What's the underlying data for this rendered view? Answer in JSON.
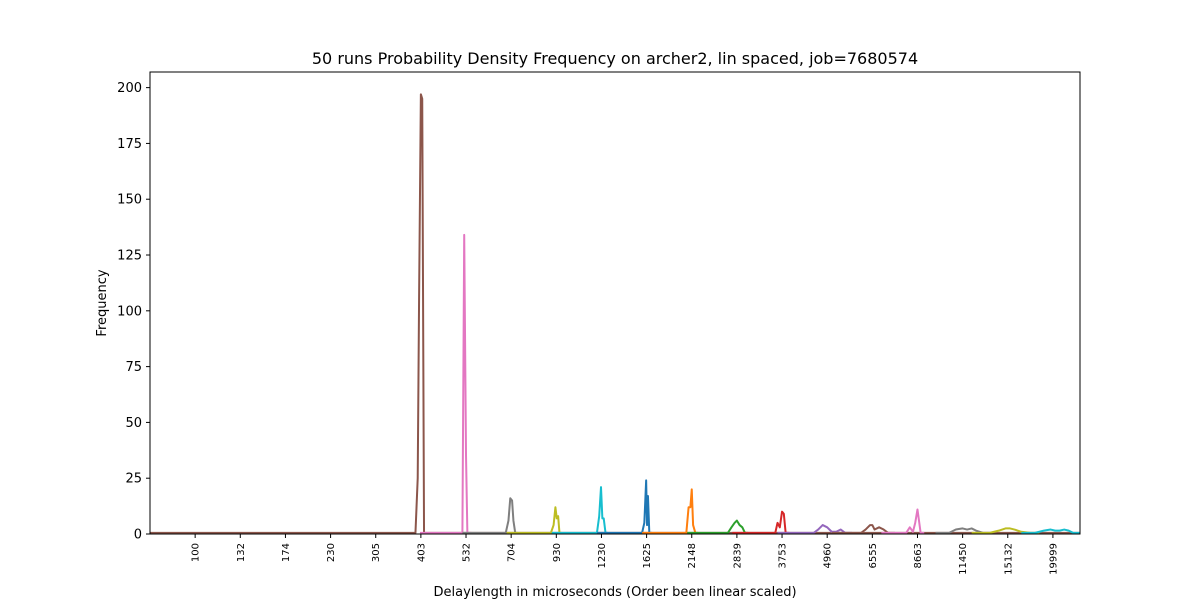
{
  "chart_data": {
    "type": "line",
    "title": "50 runs Probability Density Frequency on archer2, lin spaced, job=7680574",
    "xlabel": "Delaylength in microseconds (Order been linear scaled)",
    "ylabel": "Frequency",
    "ylim": [
      0,
      207
    ],
    "yticks": [
      0,
      25,
      50,
      75,
      100,
      125,
      150,
      175,
      200
    ],
    "xlim": [
      -1,
      19.6
    ],
    "x_tick_labels": [
      "100",
      "132",
      "174",
      "230",
      "305",
      "403",
      "532",
      "704",
      "930",
      "1230",
      "1625",
      "2148",
      "2839",
      "3753",
      "4960",
      "6555",
      "8663",
      "11450",
      "15132",
      "19999"
    ],
    "grid": false,
    "legend": "none",
    "series": [
      {
        "color": "#8c564b",
        "x": [
          -1.0,
          4.88,
          4.93,
          4.96,
          5.0,
          5.03,
          5.07,
          5.12,
          19.6
        ],
        "values": [
          0.5,
          0.5,
          25,
          105,
          197,
          195,
          0.5,
          0.5,
          0.5
        ]
      },
      {
        "color": "#e377c2",
        "x": [
          4.98,
          5.92,
          5.96,
          6.0,
          6.03,
          6.06,
          6.12
        ],
        "values": [
          0.5,
          0.5,
          134,
          35,
          0.5,
          0.5,
          0.5
        ]
      },
      {
        "color": "#7f7f7f",
        "x": [
          5.92,
          6.88,
          6.94,
          6.98,
          7.02,
          7.05,
          7.09,
          7.14
        ],
        "values": [
          0.5,
          0.5,
          6,
          16,
          15,
          6,
          0.5,
          0.5
        ]
      },
      {
        "color": "#bcbd22",
        "x": [
          6.9,
          7.88,
          7.94,
          7.98,
          8.01,
          8.04,
          8.07,
          8.12
        ],
        "values": [
          0.5,
          0.5,
          4,
          12,
          7,
          8,
          0.5,
          0.5
        ]
      },
      {
        "color": "#17becf",
        "x": [
          7.9,
          8.9,
          8.95,
          8.99,
          9.02,
          9.05,
          9.09,
          9.14
        ],
        "values": [
          0.5,
          0.5,
          8,
          21,
          7,
          7,
          0.5,
          0.5
        ]
      },
      {
        "color": "#1f77b4",
        "x": [
          8.9,
          9.9,
          9.95,
          9.99,
          10.01,
          10.03,
          10.06,
          10.12
        ],
        "values": [
          0.5,
          0.5,
          5,
          24,
          4,
          17,
          0.5,
          0.5
        ]
      },
      {
        "color": "#ff7f0e",
        "x": [
          9.9,
          10.88,
          10.93,
          10.97,
          11.0,
          11.03,
          11.08,
          11.14
        ],
        "values": [
          0.5,
          0.5,
          12,
          12,
          20,
          4,
          0.5,
          0.5
        ]
      },
      {
        "color": "#2ca02c",
        "x": [
          10.9,
          11.8,
          11.88,
          11.95,
          12.0,
          12.06,
          12.12,
          12.18,
          12.25
        ],
        "values": [
          0.5,
          0.5,
          3,
          5,
          6,
          4,
          3,
          0.5,
          0.5
        ]
      },
      {
        "color": "#d62728",
        "x": [
          11.9,
          12.85,
          12.9,
          12.95,
          13.0,
          13.04,
          13.08,
          13.15
        ],
        "values": [
          0.5,
          0.5,
          5,
          3,
          10,
          9,
          0.5,
          0.5
        ]
      },
      {
        "color": "#9467bd",
        "x": [
          12.9,
          13.7,
          13.8,
          13.9,
          14.0,
          14.1,
          14.2,
          14.3,
          14.4,
          14.55
        ],
        "values": [
          0.5,
          0.5,
          2,
          4,
          3,
          1,
          1,
          2,
          0.5,
          0.5
        ]
      },
      {
        "color": "#8c564b",
        "x": [
          14.1,
          14.75,
          14.85,
          14.95,
          15.0,
          15.05,
          15.15,
          15.25,
          15.35,
          15.5
        ],
        "values": [
          0.5,
          0.5,
          2,
          4,
          4,
          2,
          3,
          2,
          0.5,
          0.5
        ]
      },
      {
        "color": "#e377c2",
        "x": [
          15.2,
          15.75,
          15.83,
          15.9,
          15.95,
          16.0,
          16.07,
          16.15
        ],
        "values": [
          0.5,
          0.5,
          3,
          1,
          5,
          11,
          0.5,
          0.5
        ]
      },
      {
        "color": "#7f7f7f",
        "x": [
          16.4,
          16.7,
          16.85,
          17.0,
          17.1,
          17.2,
          17.3,
          17.45,
          17.6
        ],
        "values": [
          0.5,
          0.5,
          2,
          2.5,
          2,
          2.5,
          1.5,
          0.5,
          0.5
        ]
      },
      {
        "color": "#bcbd22",
        "x": [
          17.2,
          17.6,
          17.8,
          17.95,
          18.05,
          18.15,
          18.3,
          18.5,
          18.7
        ],
        "values": [
          0.5,
          0.5,
          1.5,
          2.5,
          2.5,
          2,
          1,
          0.5,
          0.5
        ]
      },
      {
        "color": "#17becf",
        "x": [
          18.3,
          18.6,
          18.8,
          18.95,
          19.05,
          19.15,
          19.25,
          19.35,
          19.45,
          19.6
        ],
        "values": [
          0.5,
          0.5,
          1.5,
          2,
          1.5,
          1.5,
          2,
          1.5,
          0.5,
          0.5
        ]
      }
    ]
  }
}
